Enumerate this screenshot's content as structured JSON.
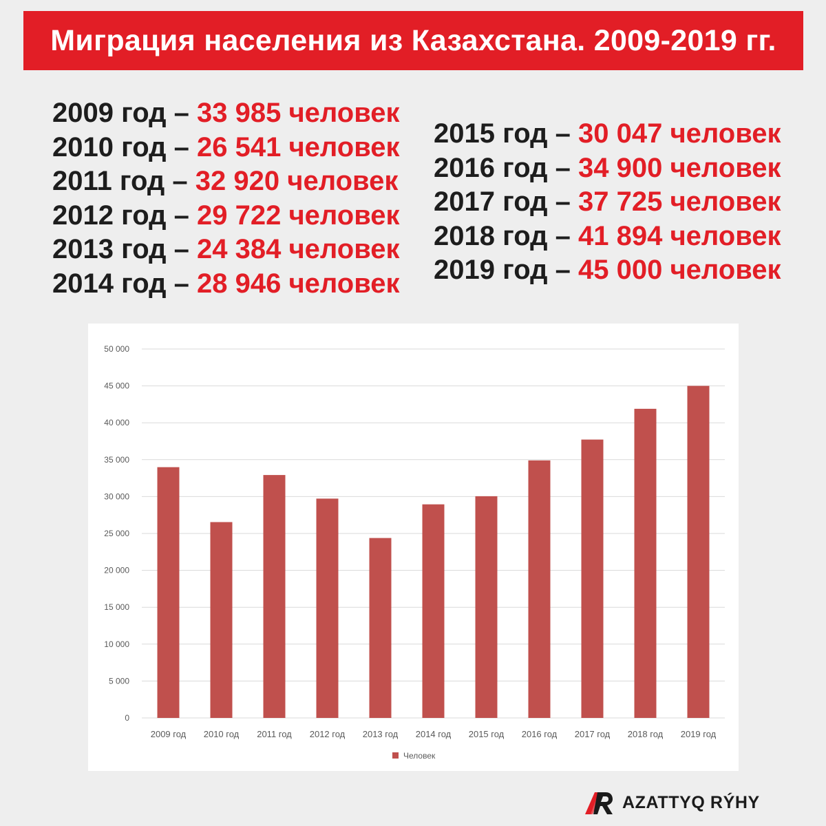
{
  "header": {
    "title": "Миграция населения из Казахстана. 2009-2019 гг."
  },
  "stats": {
    "left": [
      {
        "year": "2009 год – ",
        "value": "33 985 человек"
      },
      {
        "year": "2010 год – ",
        "value": "26 541 человек"
      },
      {
        "year": "2011 год – ",
        "value": "32 920 человек"
      },
      {
        "year": "2012 год – ",
        "value": "29 722 человек"
      },
      {
        "year": "2013 год – ",
        "value": "24 384 человек"
      },
      {
        "year": "2014 год – ",
        "value": "28 946 человек"
      }
    ],
    "right": [
      {
        "year": "2015 год – ",
        "value": "30 047 человек"
      },
      {
        "year": "2016 год – ",
        "value": "34 900 человек"
      },
      {
        "year": "2017 год – ",
        "value": "37 725 человек"
      },
      {
        "year": "2018 год – ",
        "value": "41 894 человек"
      },
      {
        "year": "2019 год – ",
        "value": "45 000 человек"
      }
    ]
  },
  "chart_data": {
    "type": "bar",
    "categories": [
      "2009 год",
      "2010 год",
      "2011 год",
      "2012 год",
      "2013 год",
      "2014 год",
      "2015 год",
      "2016 год",
      "2017 год",
      "2018 год",
      "2019 год"
    ],
    "series": [
      {
        "name": "Человек",
        "values": [
          33985,
          26541,
          32920,
          29722,
          24384,
          28946,
          30047,
          34900,
          37725,
          41894,
          45000
        ],
        "color": "#c0504d"
      }
    ],
    "ylim": [
      0,
      50000
    ],
    "yticks": [
      0,
      5000,
      10000,
      15000,
      20000,
      25000,
      30000,
      35000,
      40000,
      45000,
      50000
    ],
    "ytick_labels": [
      "0",
      "5 000",
      "10 000",
      "15 000",
      "20 000",
      "25 000",
      "30 000",
      "35 000",
      "40 000",
      "45 000",
      "50 000"
    ],
    "grid": true,
    "legend": "bottom"
  },
  "brand": {
    "name": "AZATTYQ RÝHY",
    "accent": "#e21e26",
    "logo_icon": "azattyq-logo-icon"
  },
  "colors": {
    "banner": "#e21e26",
    "background": "#eeeeee",
    "bar": "#c0504d",
    "value_text": "#e21e26"
  }
}
